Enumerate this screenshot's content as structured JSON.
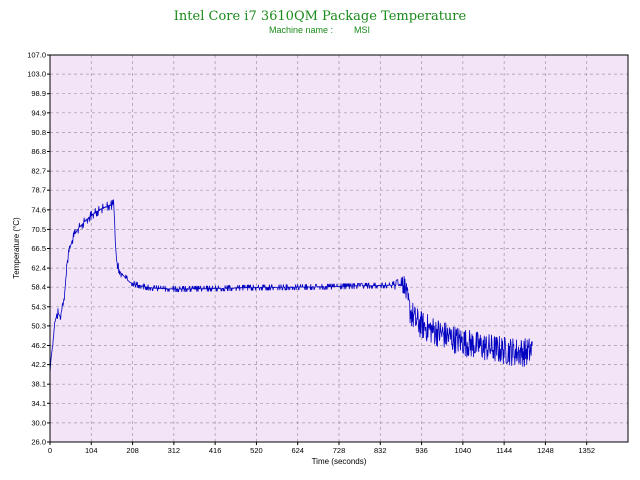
{
  "colors": {
    "plot_background": "#f4e4f8",
    "grid": "#9a9a9a",
    "series": "#0000c0",
    "title": "#1a8a1a",
    "frame": "#000000"
  },
  "chart_data": {
    "type": "line",
    "title": "Intel Core i7 3610QM Package Temperature",
    "subtitle_label": "Machine name :",
    "subtitle_value": "MSI",
    "xlabel": "Time (seconds)",
    "ylabel": "Temperature (°C)",
    "xlim": [
      0,
      1456
    ],
    "ylim": [
      26.0,
      107.0
    ],
    "grid": true,
    "x_ticks": [
      "0",
      "104",
      "208",
      "312",
      "416",
      "520",
      "624",
      "728",
      "832",
      "936",
      "1040",
      "1144",
      "1248",
      "1352"
    ],
    "y_ticks": [
      "107.0",
      "103.0",
      "98.9",
      "94.9",
      "90.8",
      "86.8",
      "82.7",
      "78.7",
      "74.6",
      "70.5",
      "66.5",
      "62.4",
      "58.4",
      "54.3",
      "50.3",
      "46.2",
      "42.2",
      "38.1",
      "34.1",
      "30.0",
      "26.0"
    ],
    "series": [
      {
        "name": "Package Temperature",
        "x": [
          0,
          3,
          6,
          8,
          12,
          18,
          25,
          32,
          38,
          42,
          46,
          50,
          55,
          62,
          70,
          80,
          92,
          105,
          118,
          130,
          140,
          150,
          160,
          165,
          168,
          172,
          178,
          188,
          200,
          215,
          232,
          250,
          280,
          320,
          400,
          500,
          600,
          700,
          800,
          860,
          893,
          900,
          905,
          910,
          920,
          935,
          960,
          990,
          1020,
          1060,
          1100,
          1140,
          1180,
          1205,
          1215
        ],
        "y": [
          40.5,
          44.0,
          45.5,
          47.5,
          51.0,
          53.0,
          52.5,
          54.0,
          58.0,
          63.0,
          65.0,
          66.5,
          68.0,
          69.5,
          70.5,
          71.5,
          72.5,
          73.5,
          74.2,
          74.8,
          75.2,
          75.5,
          75.8,
          67.0,
          64.0,
          62.5,
          61.5,
          60.5,
          59.5,
          59.0,
          58.6,
          58.3,
          58.1,
          58.0,
          58.1,
          58.3,
          58.4,
          58.5,
          58.7,
          58.8,
          58.9,
          56.0,
          54.0,
          53.0,
          51.5,
          50.5,
          49.5,
          48.5,
          47.5,
          46.5,
          45.8,
          45.2,
          44.8,
          44.8,
          45.5
        ],
        "noise": [
          0.3,
          0.3,
          0.4,
          0.6,
          1.2,
          1.2,
          1.2,
          1.2,
          1.0,
          1.0,
          1.0,
          1.0,
          1.0,
          1.0,
          1.0,
          1.0,
          1.0,
          1.0,
          1.0,
          1.0,
          1.0,
          1.0,
          1.0,
          1.5,
          1.2,
          1.0,
          1.0,
          0.8,
          0.7,
          0.6,
          0.6,
          0.6,
          0.6,
          0.6,
          0.6,
          0.6,
          0.6,
          0.6,
          0.6,
          0.6,
          2.0,
          2.5,
          3.0,
          3.0,
          3.0,
          3.0,
          3.0,
          3.0,
          3.0,
          3.0,
          3.0,
          3.0,
          3.0,
          3.0,
          3.0
        ]
      }
    ]
  }
}
